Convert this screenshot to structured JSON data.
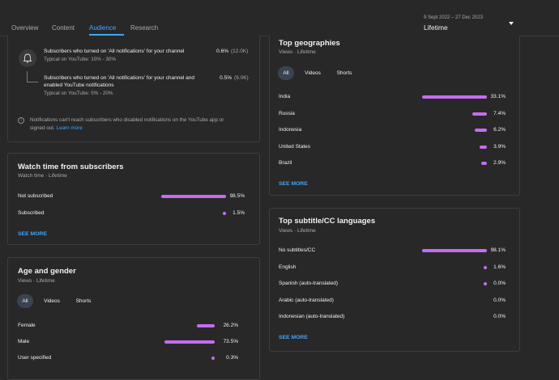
{
  "tabs": [
    "Overview",
    "Content",
    "Audience",
    "Research"
  ],
  "date_range": "9 Sept 2022 – 27 Dec 2023",
  "period": "Lifetime",
  "notifications": {
    "rows": [
      {
        "text": "Subscribers who turned on 'All notifications' for your channel",
        "typical": "Typical on YouTube: 10% - 30%",
        "pct": "0.6%",
        "count": "(12.0K)"
      },
      {
        "text1": "Subscribers who turned on 'All notifications' for your channel and",
        "text2": "enabled YouTube notifications",
        "typical": "Typical on YouTube: 5% - 20%",
        "pct": "0.5%",
        "count": "(9.0K)"
      }
    ],
    "note1": "Notifications can't reach subscribers who disabled notifications on the YouTube app or",
    "note2": "signed out.",
    "learn_more": "Learn more"
  },
  "watch_time": {
    "title": "Watch time from subscribers",
    "sub": "Watch time · Lifetime",
    "rows": [
      {
        "label": "Not subscribed",
        "pct": "98.5%",
        "value": 98.5
      },
      {
        "label": "Subscribed",
        "pct": "1.5%",
        "value": 1.5
      }
    ],
    "see_more": "SEE MORE"
  },
  "age_gender": {
    "title": "Age and gender",
    "sub": "Views · Lifetime",
    "chips": [
      "All",
      "Videos",
      "Shorts"
    ],
    "rows": [
      {
        "label": "Female",
        "pct": "26.2%",
        "value": 26.2
      },
      {
        "label": "Male",
        "pct": "73.5%",
        "value": 73.5
      },
      {
        "label": "User specified",
        "pct": "0.3%",
        "value": 0.3
      }
    ]
  },
  "geographies": {
    "title": "Top geographies",
    "sub": "Views · Lifetime",
    "chips": [
      "All",
      "Videos",
      "Shorts"
    ],
    "rows": [
      {
        "label": "India",
        "pct": "33.1%",
        "value": 33.1
      },
      {
        "label": "Russia",
        "pct": "7.4%",
        "value": 7.4
      },
      {
        "label": "Indonesia",
        "pct": "6.2%",
        "value": 6.2
      },
      {
        "label": "United States",
        "pct": "3.9%",
        "value": 3.9
      },
      {
        "label": "Brazil",
        "pct": "2.9%",
        "value": 2.9
      }
    ],
    "see_more": "SEE MORE"
  },
  "subtitles": {
    "title": "Top subtitle/CC languages",
    "sub": "Views · Lifetime",
    "rows": [
      {
        "label": "No subtitles/CC",
        "pct": "98.1%",
        "value": 98.1
      },
      {
        "label": "English",
        "pct": "1.6%",
        "value": 1.6
      },
      {
        "label": "Spanish (auto-translated)",
        "pct": "0.0%",
        "value": 0.04
      },
      {
        "label": "Arabic (auto-translated)",
        "pct": "0.0%",
        "value": 0
      },
      {
        "label": "Indonesian (auto-translated)",
        "pct": "0.0%",
        "value": 0
      }
    ],
    "see_more": "SEE MORE"
  },
  "colors": {
    "accent": "#3ea6ff",
    "bar": "#c36df0",
    "background": "#282828"
  }
}
